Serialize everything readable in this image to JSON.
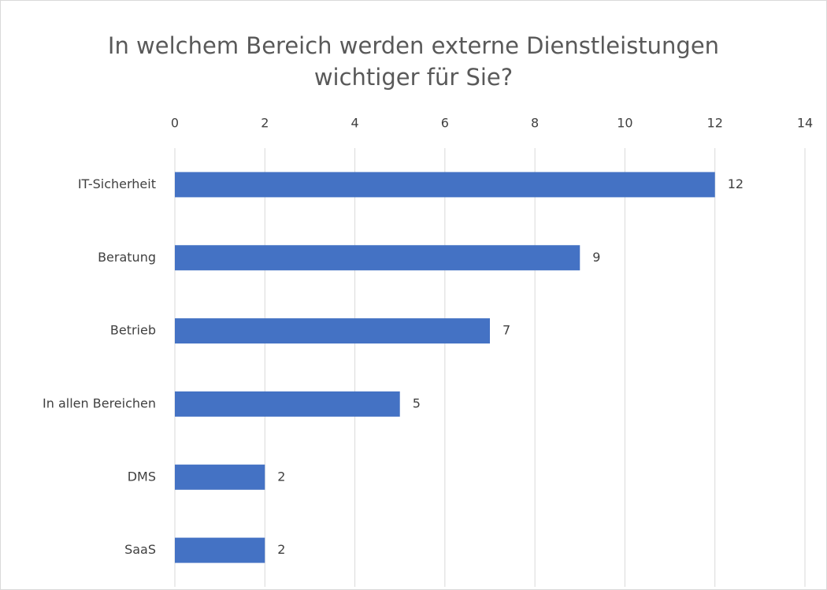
{
  "chart_data": {
    "type": "barh",
    "title": "In welchem Bereich werden externe Dienstleistungen wichtiger für Sie?",
    "categories": [
      "IT-Sicherheit",
      "Beratung",
      "Betrieb",
      "In allen Bereichen",
      "DMS",
      "SaaS"
    ],
    "values": [
      12,
      9,
      7,
      5,
      2,
      2
    ],
    "color": "#4472c4",
    "xlim": [
      0,
      14
    ],
    "xticks": [
      0,
      2,
      4,
      6,
      8,
      10,
      12,
      14
    ],
    "grid": true
  }
}
